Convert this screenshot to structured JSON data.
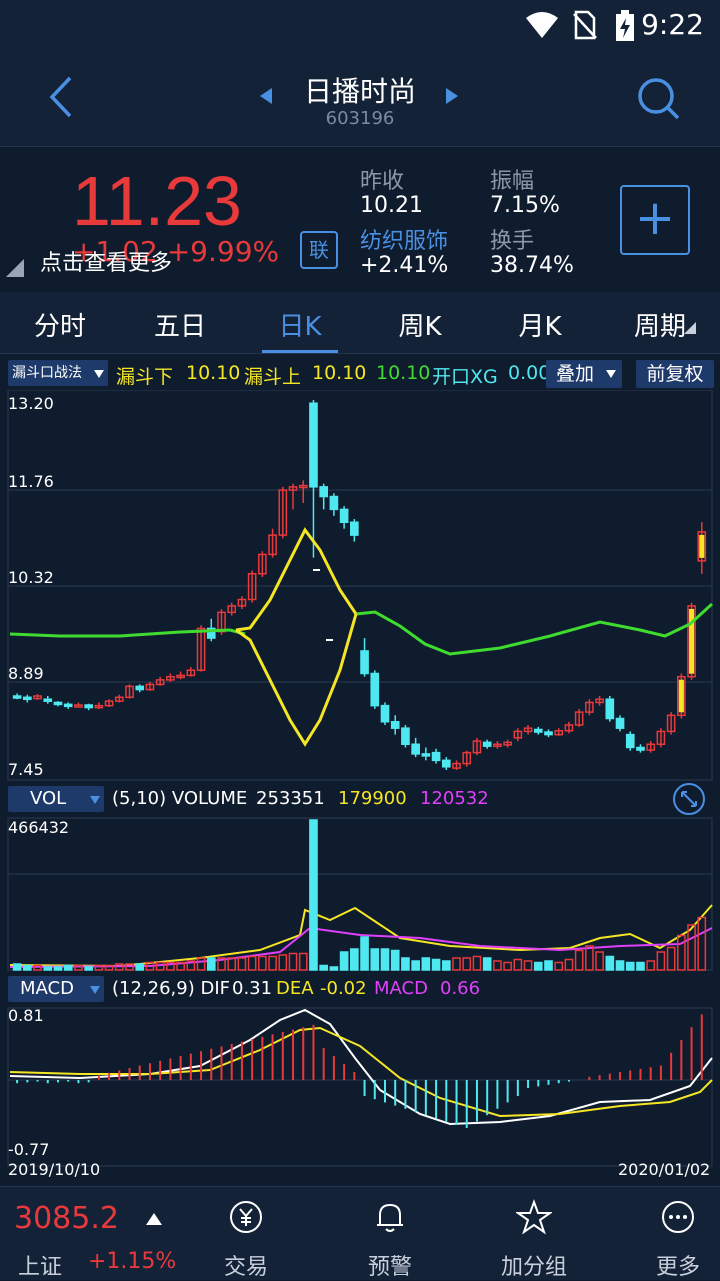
{
  "status": {
    "time": "9:22"
  },
  "nav": {
    "title": "日播时尚",
    "code": "603196"
  },
  "quote": {
    "price": "11.23",
    "change": "+1.02  +9.99%",
    "tap_hint": "点击查看更多",
    "link_label": "联",
    "prev_close_label": "昨收",
    "prev_close": "10.21",
    "amplitude_label": "振幅",
    "amplitude": "7.15%",
    "industry": "纺织服饰",
    "industry_change": "+2.41%",
    "turnover_label": "换手",
    "turnover": "38.74%",
    "add_label": "+"
  },
  "tabs": [
    "分时",
    "五日",
    "日K",
    "周K",
    "月K",
    "周期"
  ],
  "indicator": {
    "strategy": "漏斗口战法",
    "funnel_low_label": "漏斗下",
    "funnel_low": "10.10",
    "funnel_high_label": "漏斗上",
    "funnel_high": "10.10",
    "green_value": "10.10",
    "open_label": "开口XG",
    "open_value": "0.00",
    "overlay": "叠加",
    "adjust": "前复权"
  },
  "kline_axis": [
    "13.20",
    "11.76",
    "10.32",
    "8.89",
    "7.45"
  ],
  "vol": {
    "label": "VOL",
    "params": "(5,10) VOLUME",
    "volume": "253351",
    "ma5": "179900",
    "ma10": "120532",
    "max": "466432"
  },
  "macd": {
    "label": "MACD",
    "params": "(12,26,9) DIF",
    "dif": "0.31",
    "dea_label": "DEA",
    "dea": "-0.02",
    "macd_label": "MACD",
    "macd": "0.66",
    "top": "0.81",
    "bottom": "-0.77"
  },
  "dates": {
    "start": "2019/10/10",
    "end": "2020/01/02"
  },
  "bottom": {
    "index_value": "3085.2",
    "index_name": "上证",
    "index_change": "+1.15%",
    "trade": "交易",
    "alert": "预警",
    "add_group": "加分组",
    "more": "更多"
  },
  "chart_data": {
    "type": "candlestick",
    "ylim": [
      7.45,
      13.2
    ],
    "colors": {
      "up": "#e8393b",
      "down": "#4fe8f0",
      "funnel": "#f5e625",
      "green": "#3fdc2f"
    }
  }
}
